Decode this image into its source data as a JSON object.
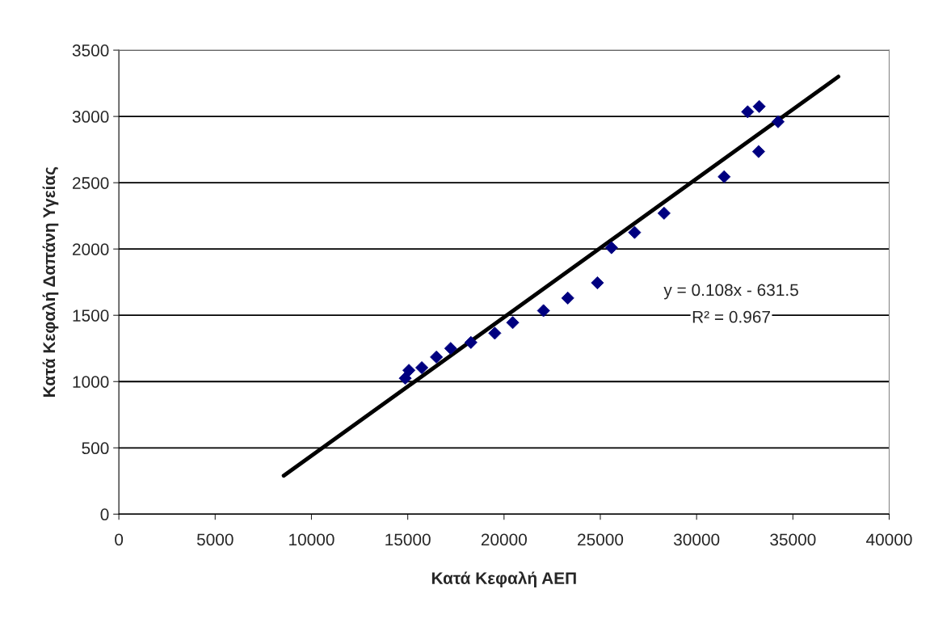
{
  "chart_data": {
    "type": "scatter",
    "xlabel": "Κατά Κεφαλή ΑΕΠ",
    "ylabel": "Κατά Κεφαλή Δαπάνη Υγείας",
    "xlim": [
      0,
      40000
    ],
    "xticks": [
      0,
      5000,
      10000,
      15000,
      20000,
      25000,
      30000,
      35000,
      40000
    ],
    "ylim": [
      0,
      3500
    ],
    "yticks": [
      0,
      500,
      1000,
      1500,
      2000,
      2500,
      3000,
      3500
    ],
    "grid": "y",
    "marker": "diamond",
    "series": [
      {
        "color": "#000080",
        "x": [
          14870,
          15060,
          15730,
          16490,
          17230,
          18280,
          19520,
          20450,
          22050,
          23310,
          24850,
          25580,
          26780,
          28310,
          31430,
          33220,
          32650,
          33250,
          34230
        ],
        "values": [
          1025,
          1085,
          1105,
          1185,
          1250,
          1295,
          1365,
          1445,
          1535,
          1630,
          1745,
          2010,
          2125,
          2270,
          2545,
          2735,
          3035,
          3075,
          2960
        ]
      },
      {
        "type": "line",
        "color": "#000000",
        "marker": "none",
        "x": [
          8560,
          37360
        ],
        "values": [
          290,
          3300
        ]
      }
    ],
    "annotations": [
      "y = 0.108x - 631.5",
      "R² = 0.967"
    ]
  }
}
